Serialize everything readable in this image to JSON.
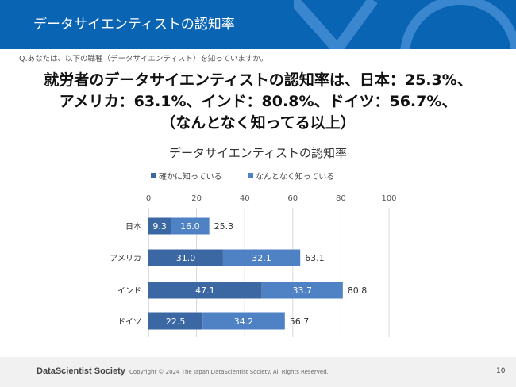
{
  "header": {
    "title": "データサイエンティストの認知率"
  },
  "question": "Q.あなたは、以下の職種（データサイエンティスト）を知っていますか。",
  "headline": [
    "就労者のデータサイエンティストの認知率は、日本：25.3%、",
    "アメリカ：63.1%、インド：80.8%、ドイツ：56.7%、",
    "（なんとなく知ってる以上）"
  ],
  "chart_data": {
    "type": "bar",
    "orientation": "horizontal",
    "stacked": true,
    "title": "データサイエンティストの認知率",
    "categories": [
      "日本",
      "アメリカ",
      "インド",
      "ドイツ"
    ],
    "series": [
      {
        "name": "確かに知っている",
        "values": [
          9.3,
          31.0,
          47.1,
          22.5
        ],
        "color": "#3b67a3"
      },
      {
        "name": "なんとなく知っている",
        "values": [
          16.0,
          32.1,
          33.7,
          34.2
        ],
        "color": "#4f82c4"
      }
    ],
    "totals": [
      25.3,
      63.1,
      80.8,
      56.7
    ],
    "xlim": [
      0,
      100
    ],
    "xticks": [
      0,
      20,
      40,
      60,
      80,
      100
    ],
    "grid": true,
    "legend": "top"
  },
  "footer": {
    "brand": "DataScientist Society",
    "copyright": "Copyright © 2024 The Japan DataScientist Society. All Rights Reserved.",
    "page": "10"
  }
}
